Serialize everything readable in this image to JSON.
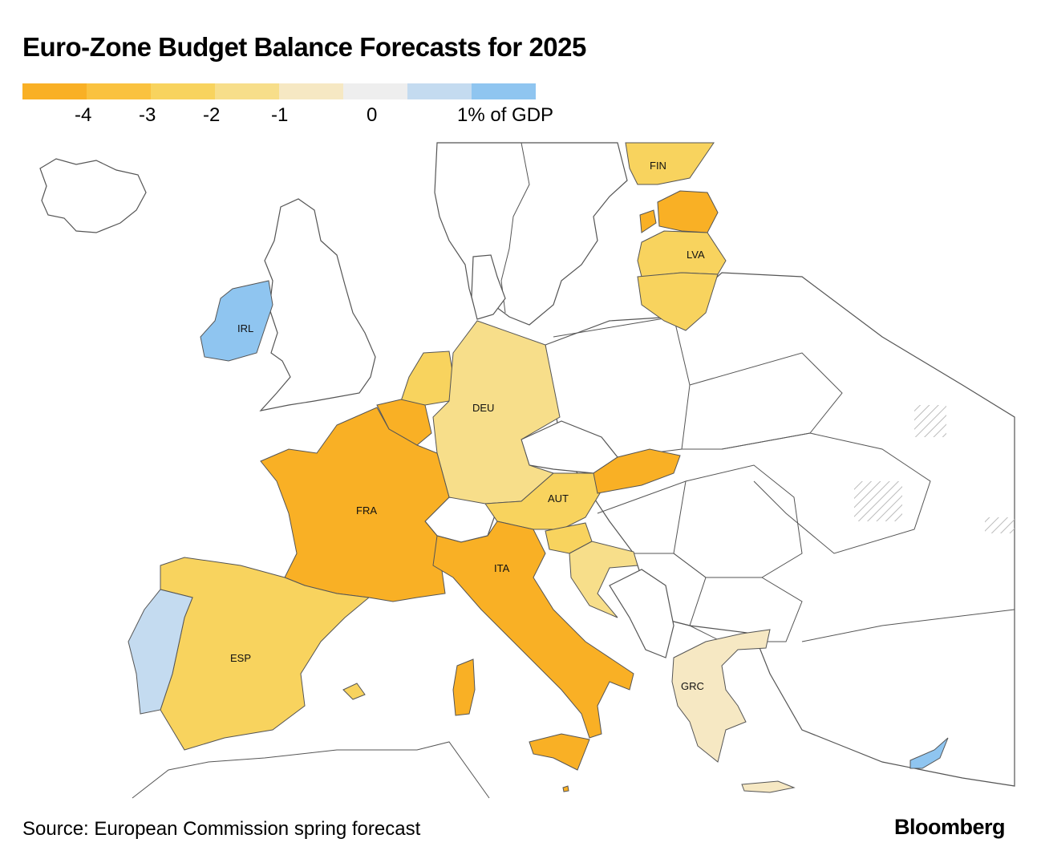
{
  "title": "Euro-Zone Budget Balance Forecasts for 2025",
  "legend": {
    "swatches": [
      {
        "color": "#F9B025",
        "from": -5,
        "to": -4
      },
      {
        "color": "#FAC23F",
        "from": -4,
        "to": -3.5
      },
      {
        "color": "#F8D35E",
        "from": -3.5,
        "to": -2.5
      },
      {
        "color": "#F7DE8A",
        "from": -2.5,
        "to": -1.5
      },
      {
        "color": "#F6E8C3",
        "from": -1.5,
        "to": -0.5
      },
      {
        "color": "#EEEEEE",
        "from": -0.5,
        "to": 0.5
      },
      {
        "color": "#C4DBF0",
        "from": 0.5,
        "to": 1
      },
      {
        "color": "#8FC5F0",
        "from": 1,
        "to": 2
      }
    ],
    "labels": [
      "-4",
      "-3",
      "-2",
      "-1",
      "0",
      "1% of GDP"
    ]
  },
  "countries": [
    {
      "code": "IRL",
      "label": "IRL",
      "color": "#8FC5F0"
    },
    {
      "code": "FIN",
      "label": "FIN",
      "color": "#F8D35E"
    },
    {
      "code": "LVA",
      "label": "LVA",
      "color": "#F8D35E"
    },
    {
      "code": "DEU",
      "label": "DEU",
      "color": "#F7DE8A"
    },
    {
      "code": "FRA",
      "label": "FRA",
      "color": "#F9B025"
    },
    {
      "code": "AUT",
      "label": "AUT",
      "color": "#F8D35E"
    },
    {
      "code": "ITA",
      "label": "ITA",
      "color": "#F9B025"
    },
    {
      "code": "ESP",
      "label": "ESP",
      "color": "#F8D35E"
    },
    {
      "code": "GRC",
      "label": "GRC",
      "color": "#F6E8C3"
    }
  ],
  "unlabeled_colors": {
    "EST": "#F9B025",
    "LTU": "#F8D35E",
    "NLD": "#F8D35E",
    "BEL": "#F9B025",
    "LUX": "#F7DE8A",
    "SVK": "#F9B025",
    "SVN": "#F8D35E",
    "HRV": "#F7DE8A",
    "PRT": "#C4DBF0",
    "MLT": "#F9B025",
    "CYP": "#8FC5F0",
    "neutral": "#FFFFFF"
  },
  "source": "Source: European Commission spring forecast",
  "brand": "Bloomberg"
}
